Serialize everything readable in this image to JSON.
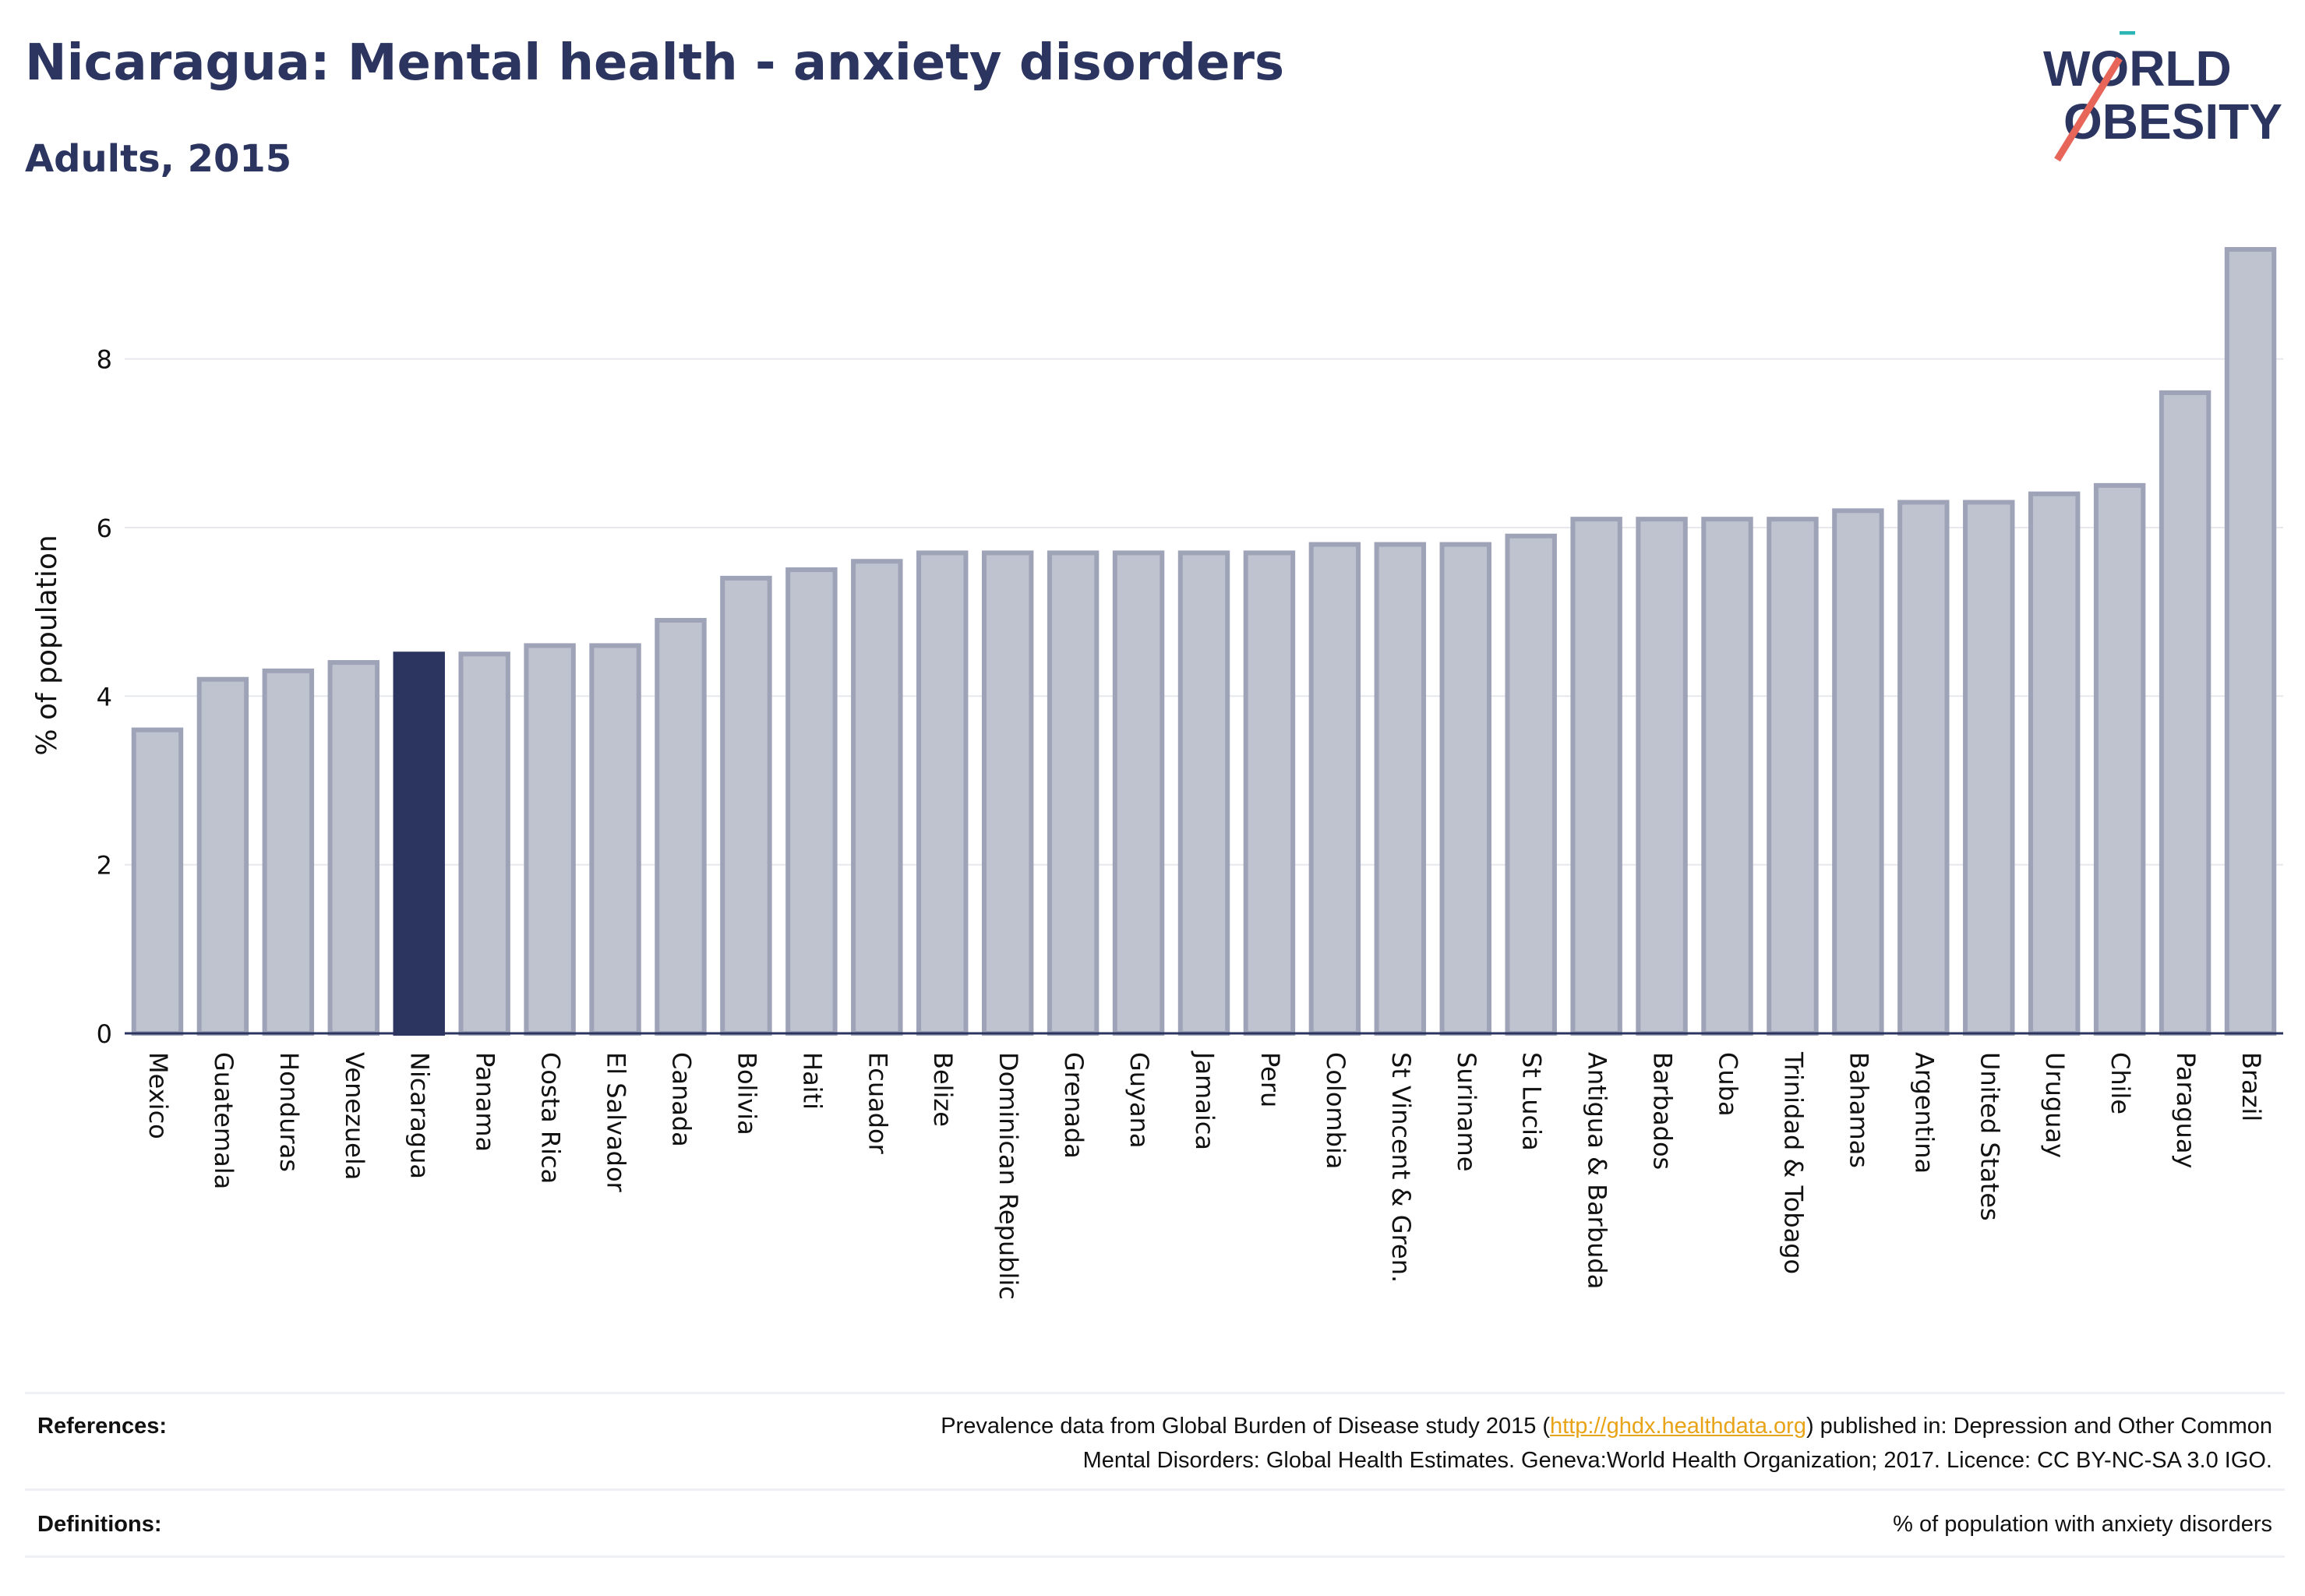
{
  "header": {
    "title": "Nicaragua: Mental health - anxiety disorders",
    "subtitle": "Adults, 2015"
  },
  "logo": {
    "line1": "WORLD",
    "line2": "OBESITY",
    "colors": {
      "text": "#2b3560",
      "slash_teal": "#2bb5b5",
      "slash_coral": "#e8655a"
    }
  },
  "colors": {
    "bar_fill": "#bfc2cf",
    "bar_stroke": "#9ea3b8",
    "highlight_fill": "#2b3560",
    "grid": "#e6e8ee",
    "axis": "#2b3560",
    "text": "#111111"
  },
  "chart_data": {
    "type": "bar",
    "ylabel": "% of population",
    "xlabel": "",
    "ylim": [
      0,
      9.3
    ],
    "yticks": [
      0,
      2,
      4,
      6,
      8
    ],
    "grid": true,
    "highlight": "Nicaragua",
    "categories": [
      "Mexico",
      "Guatemala",
      "Honduras",
      "Venezuela",
      "Nicaragua",
      "Panama",
      "Costa Rica",
      "El Salvador",
      "Canada",
      "Bolivia",
      "Haiti",
      "Ecuador",
      "Belize",
      "Dominican Republic",
      "Grenada",
      "Guyana",
      "Jamaica",
      "Peru",
      "Colombia",
      "St Vincent & Gren.",
      "Suriname",
      "St Lucia",
      "Antigua & Barbuda",
      "Barbados",
      "Cuba",
      "Trinidad & Tobago",
      "Bahamas",
      "Argentina",
      "United States",
      "Uruguay",
      "Chile",
      "Paraguay",
      "Brazil"
    ],
    "values": [
      3.6,
      4.2,
      4.3,
      4.4,
      4.5,
      4.5,
      4.6,
      4.6,
      4.9,
      5.4,
      5.5,
      5.6,
      5.7,
      5.7,
      5.7,
      5.7,
      5.7,
      5.7,
      5.8,
      5.8,
      5.8,
      5.9,
      6.1,
      6.1,
      6.1,
      6.1,
      6.2,
      6.3,
      6.3,
      6.4,
      6.5,
      7.6,
      9.3
    ]
  },
  "footer": {
    "references_label": "References:",
    "references_pre": "Prevalence data from Global Burden of Disease study 2015 (",
    "references_link": "http://ghdx.healthdata.org",
    "references_post": ") published in: Depression and Other Common",
    "references_line2": "Mental Disorders: Global Health Estimates. Geneva:World Health Organization; 2017. Licence: CC BY-NC-SA 3.0 IGO.",
    "definitions_label": "Definitions:",
    "definitions_text": "% of population with anxiety disorders"
  }
}
